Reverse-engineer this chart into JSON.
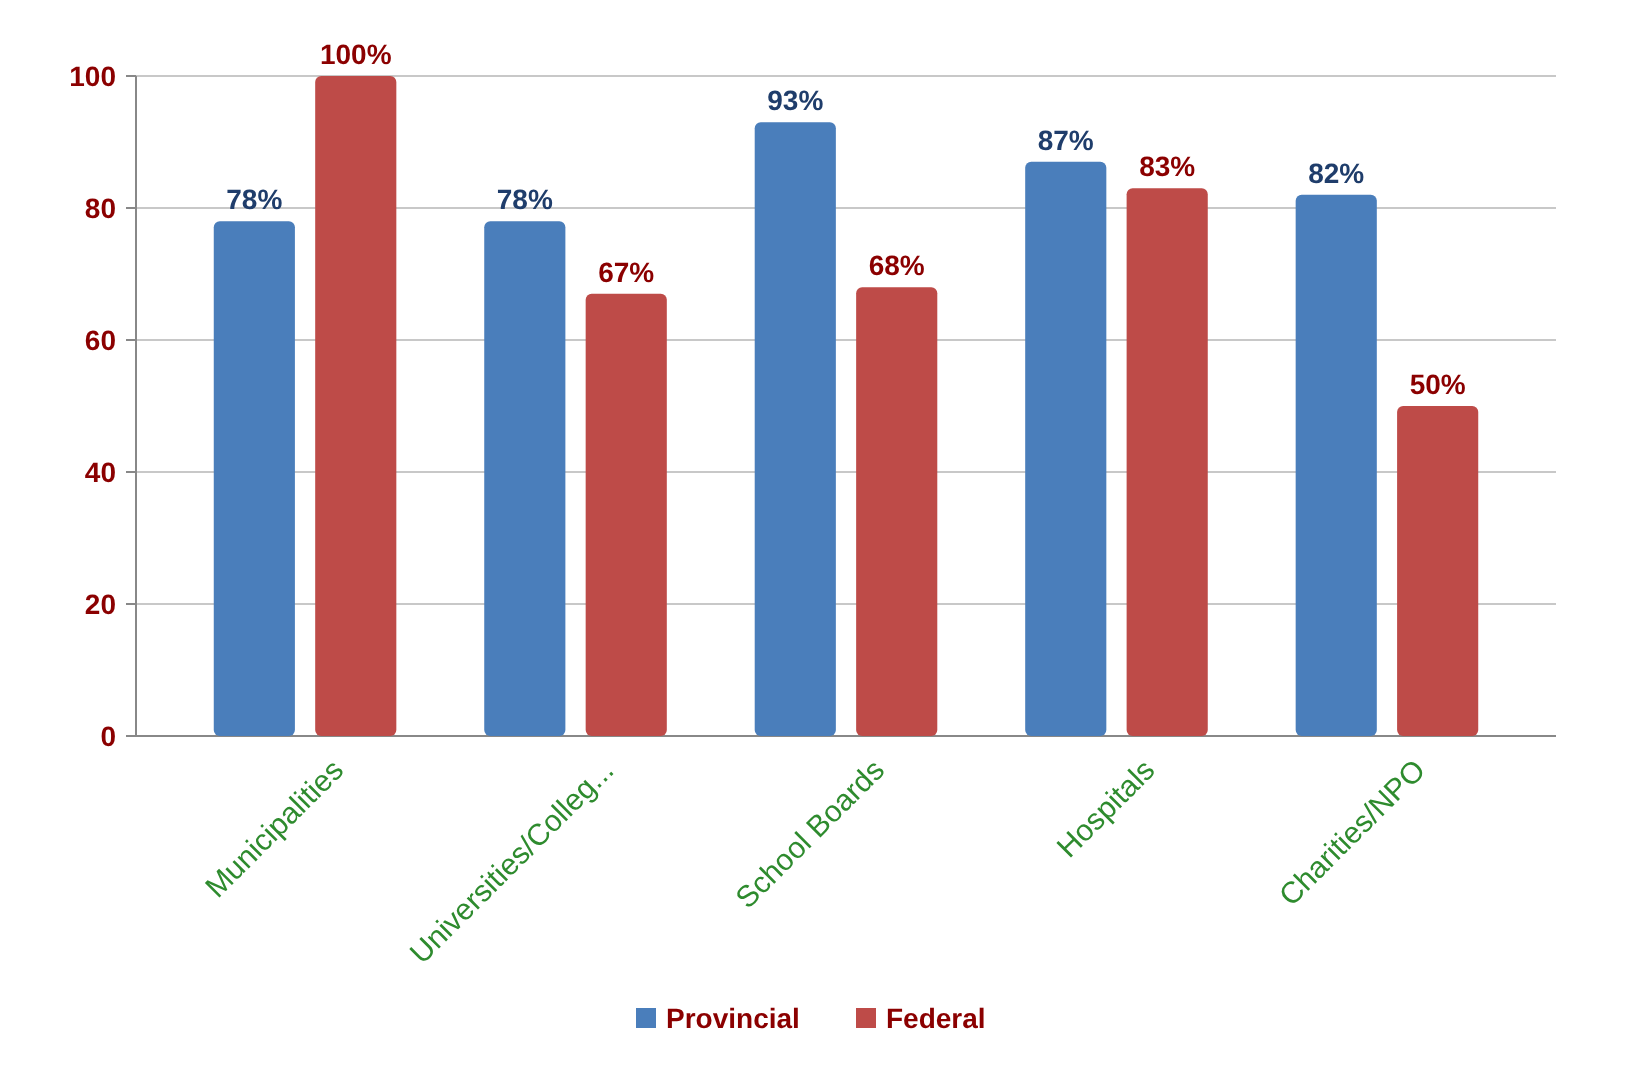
{
  "chart_data": {
    "type": "bar",
    "categories": [
      "Municipalities",
      "Universities/Colleg...",
      "School Boards",
      "Hospitals",
      "Charities/NPO"
    ],
    "series": [
      {
        "name": "Provincial",
        "color": "#4a7ebb",
        "values": [
          78,
          78,
          93,
          87,
          82
        ],
        "value_labels": [
          "78%",
          "78%",
          "93%",
          "87%",
          "82%"
        ]
      },
      {
        "name": "Federal",
        "color": "#be4b48",
        "values": [
          100,
          67,
          68,
          83,
          50
        ],
        "value_labels": [
          "100%",
          "67%",
          "68%",
          "83%",
          "50%"
        ]
      }
    ],
    "ylim": [
      0,
      100
    ],
    "yticks": [
      0,
      20,
      40,
      60,
      80,
      100
    ],
    "grid": "y",
    "legend": "bottom"
  }
}
